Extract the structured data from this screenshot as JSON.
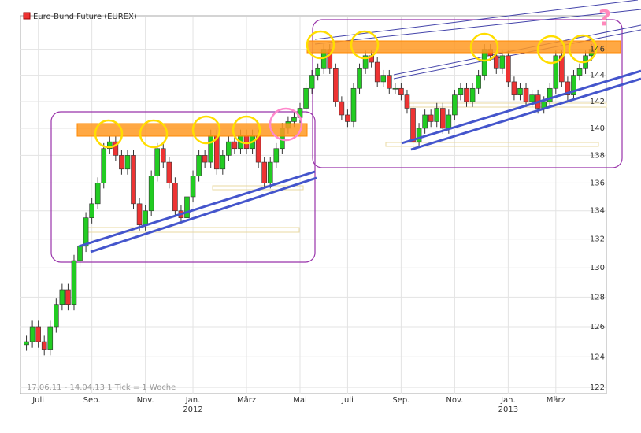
{
  "chart_data": {
    "type": "candlestick",
    "title": "Euro-Bund Future (EUREX)",
    "footer": "17.06.11 - 14.04.13   1 Tick = 1 Woche",
    "annotation": "?",
    "log_y": true,
    "grid": true,
    "up_color": "#22cc22",
    "down_color": "#ee3333",
    "legend_color": "#ee3333",
    "ylim": [
      121.6,
      148.5
    ],
    "yticks": [
      122,
      124,
      126,
      128,
      130,
      132,
      134,
      136,
      138,
      140,
      142,
      144,
      146
    ],
    "xlim": [
      -1,
      97.5
    ],
    "xticks": [
      {
        "value": 2,
        "label": "Juli"
      },
      {
        "value": 11,
        "label": "Sep."
      },
      {
        "value": 20,
        "label": "Nov."
      },
      {
        "value": 28,
        "label": "Jan."
      },
      {
        "value": 37,
        "label": "März"
      },
      {
        "value": 46,
        "label": "Mai"
      },
      {
        "value": 54,
        "label": "Juli"
      },
      {
        "value": 63,
        "label": "Sep."
      },
      {
        "value": 72,
        "label": "Nov."
      },
      {
        "value": 81,
        "label": "Jan."
      },
      {
        "value": 89,
        "label": "März"
      }
    ],
    "years": [
      {
        "value": 28,
        "label": "2012"
      },
      {
        "value": 81,
        "label": "2013"
      }
    ],
    "open": [
      124.8,
      125.0,
      126.0,
      125.0,
      124.5,
      126.0,
      127.5,
      128.5,
      127.5,
      130.5,
      131.5,
      133.5,
      134.5,
      136.0,
      138.5,
      139.0,
      138.0,
      137.0,
      138.0,
      134.5,
      133.0,
      134.0,
      136.5,
      138.5,
      137.5,
      136.0,
      134.0,
      133.5,
      135.0,
      136.5,
      138.0,
      137.5,
      139.5,
      137.0,
      138.0,
      139.0,
      138.5,
      139.5,
      138.5,
      139.5,
      137.5,
      136.0,
      137.5,
      138.5,
      140.0,
      140.5,
      140.8,
      141.5,
      143.0,
      144.0,
      144.5,
      146.0,
      144.5,
      142.0,
      141.0,
      140.5,
      143.0,
      144.5,
      145.5,
      145.0,
      143.5,
      144.0,
      143.0,
      143.0,
      142.5,
      141.5,
      139.0,
      140.0,
      141.0,
      140.5,
      141.5,
      140.0,
      141.0,
      142.5,
      143.0,
      142.0,
      143.0,
      144.0,
      146.0,
      145.5,
      144.5,
      145.5,
      143.5,
      142.5,
      143.0,
      142.0,
      142.5,
      141.5,
      142.0,
      143.0,
      145.5,
      143.5,
      142.5,
      144.0,
      144.5,
      145.5
    ],
    "close": [
      125.0,
      126.0,
      125.0,
      124.5,
      126.0,
      127.5,
      128.5,
      127.5,
      130.5,
      131.5,
      133.5,
      134.5,
      136.0,
      138.5,
      139.0,
      138.0,
      137.0,
      138.0,
      134.5,
      133.0,
      134.0,
      136.5,
      138.5,
      137.5,
      136.0,
      134.0,
      133.5,
      135.0,
      136.5,
      138.0,
      137.5,
      139.5,
      137.0,
      138.0,
      139.0,
      138.5,
      139.5,
      138.5,
      139.5,
      137.5,
      136.0,
      137.5,
      138.5,
      140.0,
      140.5,
      140.8,
      141.5,
      143.0,
      144.0,
      144.5,
      146.0,
      144.5,
      142.0,
      141.0,
      140.5,
      143.0,
      144.5,
      145.5,
      145.0,
      143.5,
      144.0,
      143.0,
      143.0,
      142.5,
      141.5,
      139.0,
      140.0,
      141.0,
      140.5,
      141.5,
      140.0,
      141.0,
      142.5,
      143.0,
      142.0,
      143.0,
      144.0,
      146.0,
      145.5,
      144.5,
      145.5,
      143.5,
      142.5,
      143.0,
      142.0,
      142.5,
      141.5,
      142.0,
      143.0,
      145.5,
      143.5,
      142.5,
      144.0,
      144.5,
      145.5,
      146.0
    ],
    "high": [
      125.4,
      126.4,
      126.4,
      125.4,
      126.4,
      127.9,
      128.9,
      128.9,
      130.9,
      131.9,
      133.9,
      134.9,
      136.4,
      138.9,
      139.4,
      139.4,
      138.4,
      138.4,
      138.4,
      134.9,
      134.4,
      136.9,
      138.9,
      138.9,
      137.9,
      136.4,
      134.4,
      135.4,
      136.9,
      138.4,
      138.4,
      139.9,
      139.9,
      138.4,
      139.4,
      139.4,
      139.9,
      139.9,
      139.9,
      139.9,
      137.9,
      137.9,
      138.9,
      140.4,
      140.9,
      141.2,
      141.9,
      143.4,
      144.4,
      144.9,
      146.4,
      146.4,
      144.9,
      142.4,
      141.4,
      143.4,
      144.9,
      145.9,
      145.9,
      145.4,
      144.4,
      144.4,
      143.4,
      143.4,
      142.9,
      141.9,
      140.4,
      141.4,
      141.4,
      141.9,
      141.9,
      141.4,
      142.9,
      143.4,
      143.4,
      143.4,
      144.4,
      146.4,
      146.4,
      145.9,
      145.9,
      145.9,
      143.9,
      143.4,
      143.4,
      142.9,
      142.9,
      142.4,
      143.4,
      145.9,
      145.9,
      143.9,
      144.4,
      144.9,
      145.9,
      146.4
    ],
    "low": [
      124.4,
      124.6,
      124.6,
      124.1,
      124.1,
      125.6,
      127.1,
      127.1,
      127.1,
      130.1,
      131.1,
      133.1,
      134.1,
      135.6,
      138.1,
      137.6,
      136.6,
      136.6,
      134.1,
      132.6,
      132.6,
      133.6,
      136.1,
      137.1,
      135.6,
      133.6,
      133.1,
      133.1,
      134.6,
      136.1,
      137.1,
      137.1,
      136.6,
      136.6,
      137.6,
      138.1,
      138.1,
      138.1,
      138.1,
      137.1,
      135.6,
      135.6,
      137.1,
      138.1,
      139.6,
      140.1,
      140.4,
      141.1,
      142.6,
      143.6,
      144.1,
      144.1,
      141.6,
      140.6,
      140.1,
      140.1,
      142.6,
      144.1,
      144.6,
      143.1,
      143.1,
      142.6,
      142.6,
      142.1,
      141.1,
      138.6,
      138.6,
      139.6,
      140.1,
      140.1,
      139.6,
      139.6,
      140.6,
      142.1,
      141.6,
      141.6,
      142.6,
      143.6,
      145.1,
      144.1,
      144.1,
      143.1,
      142.1,
      142.1,
      141.6,
      141.6,
      141.1,
      141.1,
      141.6,
      142.6,
      143.1,
      142.1,
      142.1,
      143.6,
      144.1,
      145.1
    ]
  }
}
